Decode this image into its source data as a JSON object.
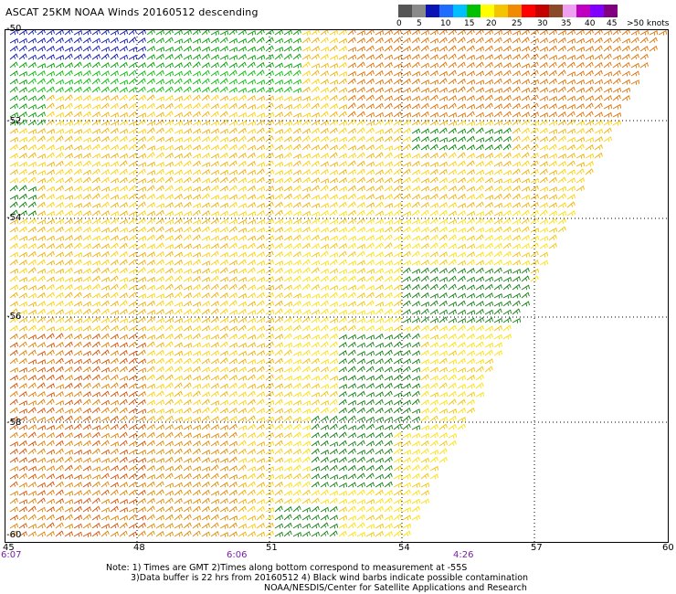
{
  "title": "ASCAT 25KM NOAA Winds 20160512 descending",
  "colorbar": {
    "colors": [
      "#555555",
      "#8a8a8a",
      "#0a14b4",
      "#1f6dff",
      "#00bfff",
      "#00c000",
      "#ffff00",
      "#f5c400",
      "#f08a00",
      "#ff0000",
      "#c40000",
      "#8a4a2a",
      "#f0a0f0",
      "#c000c0",
      "#8000ff",
      "#800080"
    ],
    "labels": [
      "0",
      "5",
      "10",
      "15",
      "20",
      "25",
      "30",
      "35",
      "40",
      "45",
      ">50 knots"
    ]
  },
  "lat_labels": [
    "-50",
    "-52",
    "-54",
    "-56",
    "-58",
    "-60"
  ],
  "lon_labels": [
    "45",
    "48",
    "51",
    "54",
    "57",
    "60"
  ],
  "times": [
    "6:07",
    "6:06",
    "4:26"
  ],
  "notes": [
    "Note: 1) Times are GMT 2)Times along bottom correspond to measurement at -55S",
    "3)Data buffer is 22 hrs from 20160512 4) Black wind barbs indicate possible contamination",
    "NOAA/NESDIS/Center for Satellite Applications and Research"
  ]
}
